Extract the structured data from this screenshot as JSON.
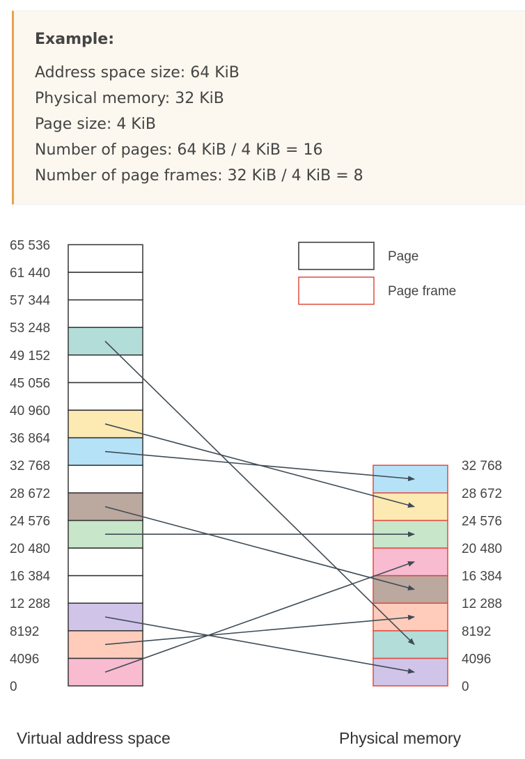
{
  "example": {
    "title": "Example:",
    "lines": [
      "Address space size: 64 KiB",
      "Physical memory: 32 KiB",
      "Page size: 4 KiB",
      "Number of pages: 64 KiB / 4 KiB = 16",
      "Number of page frames: 32 KiB / 4 KiB = 8"
    ]
  },
  "legend": {
    "page": "Page",
    "page_frame": "Page frame"
  },
  "colors": {
    "page_border": "#333333",
    "frame_border": "#e04a3f",
    "arrow": "#3f4b55",
    "teal": "#b2ddd8",
    "yellow": "#fde9b2",
    "blue": "#b6e2f8",
    "brown": "#bba89f",
    "green": "#c8e6c9",
    "purple": "#d1c4e9",
    "peach": "#ffccbc",
    "pink": "#f8bbd0"
  },
  "virtual_ticks": [
    "0",
    "4096",
    "8192",
    "12 288",
    "16 384",
    "20 480",
    "24 576",
    "28 672",
    "32 768",
    "36 864",
    "40 960",
    "45 056",
    "49 152",
    "53 248",
    "57 344",
    "61 440",
    "65 536"
  ],
  "physical_ticks": [
    "0",
    "4096",
    "8192",
    "12 288",
    "16 384",
    "20 480",
    "24 576",
    "28 672",
    "32 768"
  ],
  "virtual_pages": [
    "pink",
    "peach",
    "purple",
    "white",
    "white",
    "green",
    "brown",
    "white",
    "blue",
    "yellow",
    "white",
    "white",
    "teal",
    "white",
    "white",
    "white"
  ],
  "page_frames": [
    "purple",
    "teal",
    "peach",
    "brown",
    "pink",
    "green",
    "yellow",
    "blue"
  ],
  "mappings": [
    {
      "page": 0,
      "frame": 4
    },
    {
      "page": 1,
      "frame": 2
    },
    {
      "page": 2,
      "frame": 0
    },
    {
      "page": 5,
      "frame": 5
    },
    {
      "page": 6,
      "frame": 3
    },
    {
      "page": 8,
      "frame": 7
    },
    {
      "page": 9,
      "frame": 6
    },
    {
      "page": 12,
      "frame": 1
    }
  ],
  "captions": {
    "virtual": "Virtual address space",
    "physical": "Physical memory"
  }
}
